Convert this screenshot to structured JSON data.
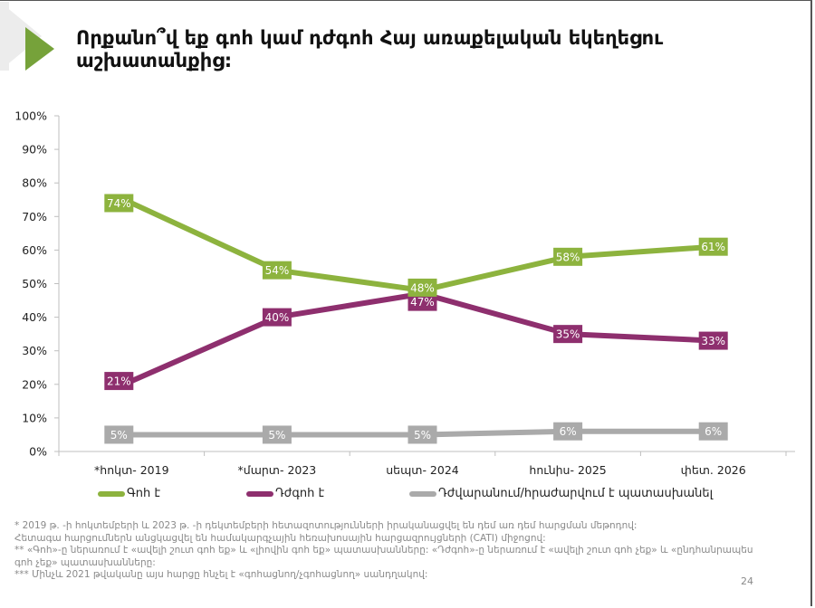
{
  "slide": {
    "title": "Որքանո՞վ եք գոհ կամ դժգոհ Հայ առաքելական եկեղեցու աշխատանքից:",
    "page_number": "24",
    "accent_color": "#76a23a"
  },
  "legend": [
    {
      "label": "Գոհ է",
      "color": "#8db33e"
    },
    {
      "label": "Դժգոհ է",
      "color": "#8e2f6e"
    },
    {
      "label": "Դժվարանում/հրաժարվում է պատասխանել",
      "color": "#aaaaaa"
    }
  ],
  "footnotes": [
    "* 2019 թ. -ի հոկտեմբերի և  2023 թ. -ի դեկտեմբերի հետազոտությունների իրականացվել են դեմ առ դեմ հարցման մեթոդով:",
    "Հետագա հարցումներն անցկացվել են համակարգչային հեռախոսային հարցազրույցների (CATI) միջոցով:",
    "** «Գոհ»-ը ներառում է «ավելի շուտ գոհ եք» և «լիովին գոհ եք» պատասխանները: «Դժգոհ»-ը ներառում է «ավելի շուտ գոհ չեք» և «ընդհանրապես",
    "գոհ չեք» պատասխանները:",
    "*** Մինչև 2021 թվականը այս հարցը հնչել է «գոհացնող/չգոհացնող» սանդղակով:"
  ],
  "chart_data": {
    "type": "line",
    "title": "Որքանո՞վ եք գոհ կամ դժգոհ Հայ առաքելական եկեղեցու աշխատանքից:",
    "xlabel": "",
    "ylabel": "",
    "categories": [
      "*հոկտ- 2019",
      "*մարտ- 2023",
      "սեպտ- 2024",
      "հունիս- 2025",
      "փետ. 2026"
    ],
    "ylim": [
      0,
      100
    ],
    "yticks": [
      "0%",
      "10%",
      "20%",
      "30%",
      "40%",
      "50%",
      "60%",
      "70%",
      "80%",
      "90%",
      "100%"
    ],
    "grid": false,
    "legend_position": "bottom",
    "series": [
      {
        "name": "Գոհ է",
        "color": "#8db33e",
        "values": [
          74,
          54,
          48,
          58,
          61
        ],
        "labels": [
          "74%",
          "54%",
          "48%",
          "58%",
          "61%"
        ]
      },
      {
        "name": "Դժգոհ է",
        "color": "#8e2f6e",
        "values": [
          21,
          40,
          47,
          35,
          33
        ],
        "labels": [
          "21%",
          "40%",
          "47%",
          "35%",
          "33%"
        ]
      },
      {
        "name": "Դժվարանում/հրաժարվում է պատասխանել",
        "color": "#aaaaaa",
        "values": [
          5,
          5,
          5,
          6,
          6
        ],
        "labels": [
          "5%",
          "5%",
          "5%",
          "6%",
          "6%"
        ]
      }
    ]
  }
}
